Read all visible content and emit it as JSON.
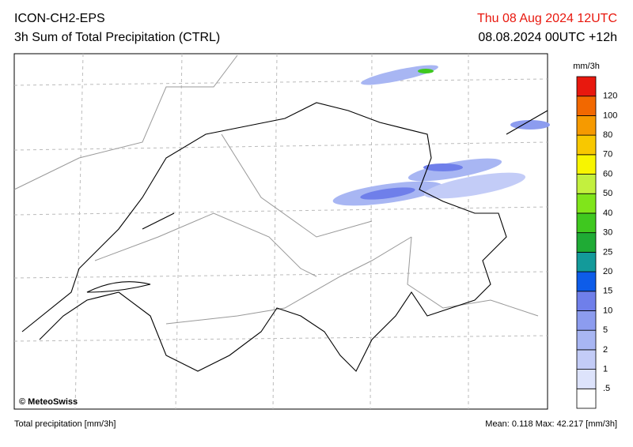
{
  "header": {
    "model": "ICON-CH2-EPS",
    "product": "3h Sum of Total Precipitation (CTRL)",
    "valid_time": "Thu 08 Aug 2024 12UTC",
    "run_time": "08.08.2024 00UTC +12h"
  },
  "map": {
    "credit": "© MeteoSwiss"
  },
  "colorbar": {
    "unit": "mm/3h",
    "colors": [
      "#ffffff",
      "#dde3fb",
      "#c3ccf7",
      "#a8b6f3",
      "#8c9cef",
      "#6f7fea",
      "#0d5ce9",
      "#139a9a",
      "#1fab35",
      "#3fc81f",
      "#80e51a",
      "#c3f03e",
      "#f8f500",
      "#f8c800",
      "#f69a00",
      "#f26800",
      "#e8180e"
    ],
    "labels": [
      ".5",
      "1",
      "2",
      "5",
      "10",
      "15",
      "20",
      "25",
      "30",
      "40",
      "50",
      "60",
      "70",
      "80",
      "100",
      "120"
    ]
  },
  "footer": {
    "left": "Total precipitation [mm/3h]",
    "right": "Mean:  0.118 Max: 42.217 [mm/3h]"
  }
}
